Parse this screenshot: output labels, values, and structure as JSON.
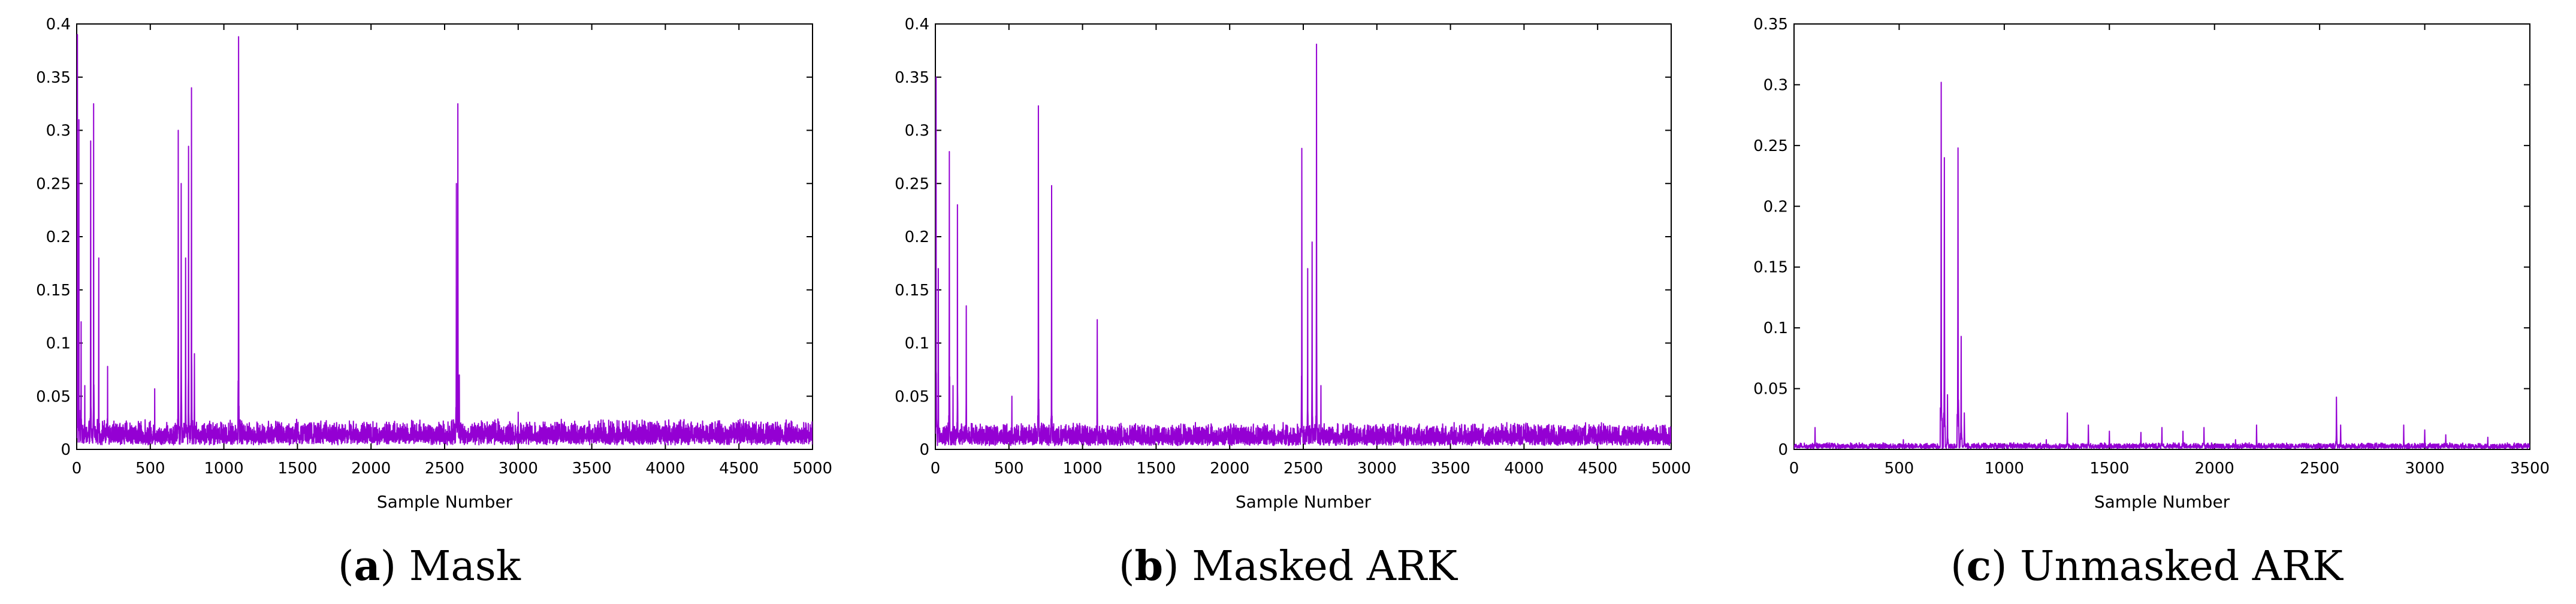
{
  "chart_data": [
    {
      "type": "line",
      "xlabel": "Sample Number",
      "ylabel": "",
      "caption": {
        "letter": "a",
        "text": "Mask"
      },
      "xlim": [
        0,
        5000
      ],
      "ylim": [
        0,
        0.4
      ],
      "xticks": [
        "0",
        "500",
        "1000",
        "1500",
        "2000",
        "2500",
        "3000",
        "3500",
        "4000",
        "4500",
        "5000"
      ],
      "yticks": [
        "0",
        "0.05",
        "0.1",
        "0.15",
        "0.2",
        "0.25",
        "0.3",
        "0.35",
        "0.4"
      ],
      "color": "#9400D3",
      "sample_count": 5000,
      "baseline": {
        "level": 0.012,
        "spread": 0.014
      },
      "peaks": [
        [
          5,
          0.39
        ],
        [
          15,
          0.31
        ],
        [
          30,
          0.12
        ],
        [
          55,
          0.06
        ],
        [
          95,
          0.29
        ],
        [
          115,
          0.325
        ],
        [
          150,
          0.18
        ],
        [
          210,
          0.078
        ],
        [
          530,
          0.057
        ],
        [
          690,
          0.3
        ],
        [
          710,
          0.25
        ],
        [
          740,
          0.18
        ],
        [
          760,
          0.285
        ],
        [
          780,
          0.34
        ],
        [
          800,
          0.09
        ],
        [
          1100,
          0.388
        ],
        [
          2580,
          0.25
        ],
        [
          2590,
          0.325
        ],
        [
          2600,
          0.07
        ],
        [
          3000,
          0.035
        ]
      ]
    },
    {
      "type": "line",
      "xlabel": "Sample Number",
      "ylabel": "",
      "caption": {
        "letter": "b",
        "text": "Masked ARK"
      },
      "xlim": [
        0,
        5000
      ],
      "ylim": [
        0,
        0.4
      ],
      "xticks": [
        "0",
        "500",
        "1000",
        "1500",
        "2000",
        "2500",
        "3000",
        "3500",
        "4000",
        "4500",
        "5000"
      ],
      "yticks": [
        "0",
        "0.05",
        "0.1",
        "0.15",
        "0.2",
        "0.25",
        "0.3",
        "0.35",
        "0.4"
      ],
      "color": "#9400D3",
      "sample_count": 5000,
      "baseline": {
        "level": 0.01,
        "spread": 0.013
      },
      "peaks": [
        [
          5,
          0.35
        ],
        [
          20,
          0.17
        ],
        [
          95,
          0.28
        ],
        [
          120,
          0.06
        ],
        [
          150,
          0.23
        ],
        [
          210,
          0.135
        ],
        [
          520,
          0.05
        ],
        [
          700,
          0.323
        ],
        [
          790,
          0.248
        ],
        [
          1100,
          0.122
        ],
        [
          2490,
          0.283
        ],
        [
          2530,
          0.17
        ],
        [
          2560,
          0.195
        ],
        [
          2590,
          0.381
        ],
        [
          2620,
          0.06
        ]
      ]
    },
    {
      "type": "line",
      "xlabel": "Sample Number",
      "ylabel": "",
      "caption": {
        "letter": "c",
        "text": "Unmasked ARK"
      },
      "xlim": [
        0,
        3500
      ],
      "ylim": [
        0,
        0.35
      ],
      "xticks": [
        "0",
        "500",
        "1000",
        "1500",
        "2000",
        "2500",
        "3000",
        "3500"
      ],
      "yticks": [
        "0",
        "0.05",
        "0.1",
        "0.15",
        "0.2",
        "0.25",
        "0.3",
        "0.35"
      ],
      "color": "#9400D3",
      "sample_count": 3500,
      "baseline": {
        "level": 0.002,
        "spread": 0.003
      },
      "peaks": [
        [
          100,
          0.018
        ],
        [
          520,
          0.008
        ],
        [
          700,
          0.302
        ],
        [
          715,
          0.24
        ],
        [
          730,
          0.045
        ],
        [
          780,
          0.248
        ],
        [
          795,
          0.093
        ],
        [
          810,
          0.03
        ],
        [
          1200,
          0.008
        ],
        [
          1300,
          0.03
        ],
        [
          1400,
          0.02
        ],
        [
          1500,
          0.015
        ],
        [
          1650,
          0.014
        ],
        [
          1750,
          0.018
        ],
        [
          1850,
          0.015
        ],
        [
          1950,
          0.018
        ],
        [
          2100,
          0.008
        ],
        [
          2200,
          0.02
        ],
        [
          2580,
          0.043
        ],
        [
          2600,
          0.02
        ],
        [
          2900,
          0.02
        ],
        [
          3000,
          0.016
        ],
        [
          3100,
          0.012
        ],
        [
          3300,
          0.01
        ]
      ]
    }
  ]
}
